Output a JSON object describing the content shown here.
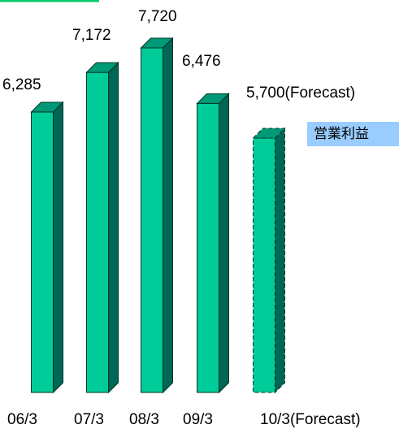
{
  "chart_data": {
    "type": "bar",
    "style": "3d",
    "categories": [
      "06/3",
      "07/3",
      "08/3",
      "09/3",
      "10/3(Forecast)"
    ],
    "values": [
      6285,
      7172,
      7720,
      6476,
      5700
    ],
    "data_labels": [
      "6,285",
      "7,172",
      "7,720",
      "6,476",
      "5,700(Forecast)"
    ],
    "forecast": [
      false,
      false,
      false,
      false,
      true
    ],
    "title": "",
    "xlabel": "",
    "ylabel": "",
    "ylim": [
      0,
      7720
    ],
    "grid": false,
    "legend": "none",
    "colors": {
      "front": "#00cc99",
      "side": "#006655",
      "top": "#009977",
      "edge": "#003322",
      "callout_bg": "#99ccff"
    }
  },
  "callout": {
    "text": "営業利益"
  }
}
